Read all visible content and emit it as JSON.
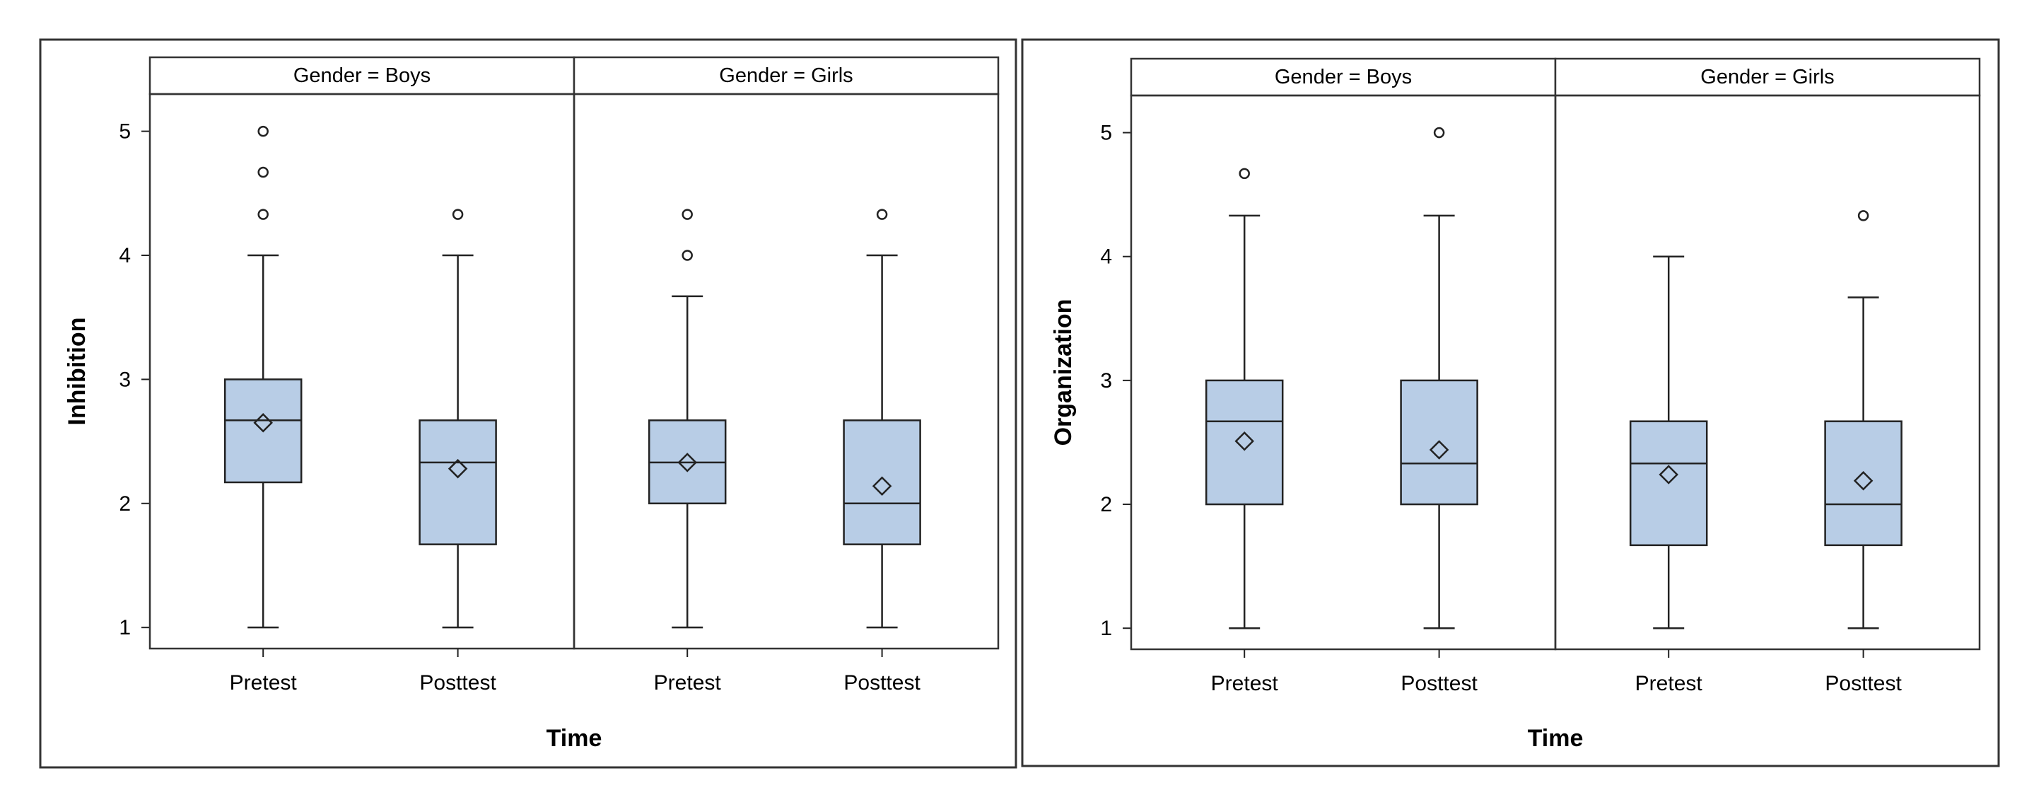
{
  "chart_data": [
    {
      "type": "boxplot",
      "ylabel": "Inhibition",
      "xlabel": "Time",
      "ylim": [
        0.83,
        5.3
      ],
      "yticks": [
        1,
        2,
        3,
        4,
        5
      ],
      "categories": [
        "Pretest",
        "Posttest"
      ],
      "facet_variable": "Gender",
      "panels": [
        {
          "strip": "Gender = Boys",
          "boxes": [
            {
              "category": "Pretest",
              "whisker_low": 1,
              "q1": 2.17,
              "median": 2.67,
              "q3": 3,
              "whisker_high": 4,
              "mean": 2.65,
              "outliers": [
                4.33,
                4.67,
                5
              ]
            },
            {
              "category": "Posttest",
              "whisker_low": 1,
              "q1": 1.67,
              "median": 2.33,
              "q3": 2.67,
              "whisker_high": 4,
              "mean": 2.28,
              "outliers": [
                4.33
              ]
            }
          ]
        },
        {
          "strip": "Gender = Girls",
          "boxes": [
            {
              "category": "Pretest",
              "whisker_low": 1,
              "q1": 2,
              "median": 2.33,
              "q3": 2.67,
              "whisker_high": 3.67,
              "mean": 2.33,
              "outliers": [
                4,
                4.33
              ]
            },
            {
              "category": "Posttest",
              "whisker_low": 1,
              "q1": 1.67,
              "median": 2,
              "q3": 2.67,
              "whisker_high": 4,
              "mean": 2.14,
              "outliers": [
                4.33
              ]
            }
          ]
        }
      ]
    },
    {
      "type": "boxplot",
      "ylabel": "Organization",
      "xlabel": "Time",
      "ylim": [
        0.83,
        5.3
      ],
      "yticks": [
        1,
        2,
        3,
        4,
        5
      ],
      "categories": [
        "Pretest",
        "Posttest"
      ],
      "facet_variable": "Gender",
      "panels": [
        {
          "strip": "Gender = Boys",
          "boxes": [
            {
              "category": "Pretest",
              "whisker_low": 1,
              "q1": 2,
              "median": 2.67,
              "q3": 3,
              "whisker_high": 4.33,
              "mean": 2.51,
              "outliers": [
                4.67
              ]
            },
            {
              "category": "Posttest",
              "whisker_low": 1,
              "q1": 2,
              "median": 2.33,
              "q3": 3,
              "whisker_high": 4.33,
              "mean": 2.44,
              "outliers": [
                5
              ]
            }
          ]
        },
        {
          "strip": "Gender = Girls",
          "boxes": [
            {
              "category": "Pretest",
              "whisker_low": 1,
              "q1": 1.67,
              "median": 2.33,
              "q3": 2.67,
              "whisker_high": 4,
              "mean": 2.24,
              "outliers": []
            },
            {
              "category": "Posttest",
              "whisker_low": 1,
              "q1": 1.67,
              "median": 2,
              "q3": 2.67,
              "whisker_high": 3.67,
              "mean": 2.19,
              "outliers": [
                4.33
              ]
            }
          ]
        }
      ]
    }
  ],
  "colors": {
    "box_fill": "#b8cde6",
    "line": "#222222",
    "strip_fill": "#ffffff",
    "frame": "#333333"
  }
}
